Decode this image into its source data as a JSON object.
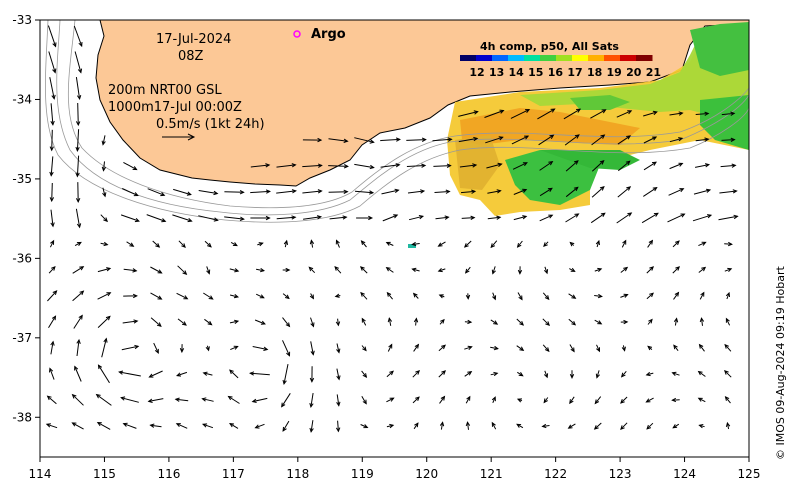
{
  "map": {
    "date": "17-Jul-2024",
    "time": "08Z",
    "argo_label": "Argo",
    "model_line1": "200m  NRT00 GSL",
    "model_line2": "1000m17-Jul 00:00Z",
    "scale_label": "0.5m/s (1kt 24h)",
    "colorbar_title": "4h comp, p50, All Sats",
    "colorbar_ticks": [
      "12",
      "13",
      "14",
      "15",
      "16",
      "17",
      "18",
      "19",
      "20",
      "21"
    ],
    "colorbar_colors": [
      "#000066",
      "#0000cc",
      "#0066ff",
      "#00bbff",
      "#00e0a0",
      "#40d040",
      "#a0e020",
      "#ffff00",
      "#ffb000",
      "#ff5000",
      "#cc0000",
      "#800000"
    ],
    "lon_ticks": [
      "114",
      "115",
      "116",
      "117",
      "118",
      "119",
      "120",
      "121",
      "122",
      "123",
      "124",
      "125"
    ],
    "lat_ticks": [
      "-33",
      "-34",
      "-35",
      "-36",
      "-37",
      "-38"
    ],
    "credit": "© IMOS 09-Aug-2024 09:19 Hobart",
    "land_color": "#fcc896",
    "argo_color": "#ff00ff"
  }
}
